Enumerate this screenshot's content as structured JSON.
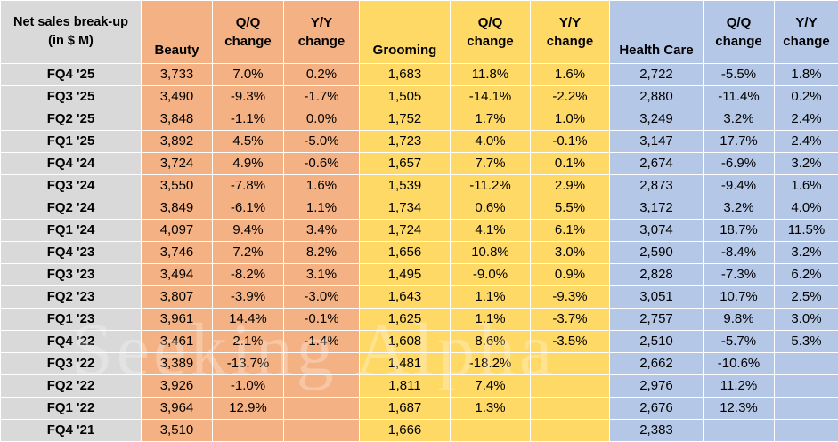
{
  "table": {
    "header": {
      "label": "Net sales break-up\n(in $ M)",
      "beauty": "Beauty",
      "beauty_qq": "Q/Q\nchange",
      "beauty_yy": "Y/Y\nchange",
      "grooming": "Grooming",
      "grooming_qq": "Q/Q\nchange",
      "grooming_yy": "Y/Y\nchange",
      "health": "Health Care",
      "health_qq": "Q/Q\nchange",
      "health_yy": "Y/Y\nchange"
    },
    "rows": [
      [
        "FQ4 '25",
        "3,733",
        "7.0%",
        "0.2%",
        "1,683",
        "11.8%",
        "1.6%",
        "2,722",
        "-5.5%",
        "1.8%"
      ],
      [
        "FQ3 '25",
        "3,490",
        "-9.3%",
        "-1.7%",
        "1,505",
        "-14.1%",
        "-2.2%",
        "2,880",
        "-11.4%",
        "0.2%"
      ],
      [
        "FQ2 '25",
        "3,848",
        "-1.1%",
        "0.0%",
        "1,752",
        "1.7%",
        "1.0%",
        "3,249",
        "3.2%",
        "2.4%"
      ],
      [
        "FQ1 '25",
        "3,892",
        "4.5%",
        "-5.0%",
        "1,723",
        "4.0%",
        "-0.1%",
        "3,147",
        "17.7%",
        "2.4%"
      ],
      [
        "FQ4 '24",
        "3,724",
        "4.9%",
        "-0.6%",
        "1,657",
        "7.7%",
        "0.1%",
        "2,674",
        "-6.9%",
        "3.2%"
      ],
      [
        "FQ3 '24",
        "3,550",
        "-7.8%",
        "1.6%",
        "1,539",
        "-11.2%",
        "2.9%",
        "2,873",
        "-9.4%",
        "1.6%"
      ],
      [
        "FQ2 '24",
        "3,849",
        "-6.1%",
        "1.1%",
        "1,734",
        "0.6%",
        "5.5%",
        "3,172",
        "3.2%",
        "4.0%"
      ],
      [
        "FQ1 '24",
        "4,097",
        "9.4%",
        "3.4%",
        "1,724",
        "4.1%",
        "6.1%",
        "3,074",
        "18.7%",
        "11.5%"
      ],
      [
        "FQ4 '23",
        "3,746",
        "7.2%",
        "8.2%",
        "1,656",
        "10.8%",
        "3.0%",
        "2,590",
        "-8.4%",
        "3.2%"
      ],
      [
        "FQ3 '23",
        "3,494",
        "-8.2%",
        "3.1%",
        "1,495",
        "-9.0%",
        "0.9%",
        "2,828",
        "-7.3%",
        "6.2%"
      ],
      [
        "FQ2 '23",
        "3,807",
        "-3.9%",
        "-3.0%",
        "1,643",
        "1.1%",
        "-9.3%",
        "3,051",
        "10.7%",
        "2.5%"
      ],
      [
        "FQ1 '23",
        "3,961",
        "14.4%",
        "-0.1%",
        "1,625",
        "1.1%",
        "-3.7%",
        "2,757",
        "9.8%",
        "3.0%"
      ],
      [
        "FQ4 '22",
        "3,461",
        "2.1%",
        "-1.4%",
        "1,608",
        "8.6%",
        "-3.5%",
        "2,510",
        "-5.7%",
        "5.3%"
      ],
      [
        "FQ3 '22",
        "3,389",
        "-13.7%",
        "",
        "1,481",
        "-18.2%",
        "",
        "2,662",
        "-10.6%",
        ""
      ],
      [
        "FQ2 '22",
        "3,926",
        "-1.0%",
        "",
        "1,811",
        "7.4%",
        "",
        "2,976",
        "11.2%",
        ""
      ],
      [
        "FQ1 '22",
        "3,964",
        "12.9%",
        "",
        "1,687",
        "1.3%",
        "",
        "2,676",
        "12.3%",
        ""
      ],
      [
        "FQ4 '21",
        "3,510",
        "",
        "",
        "1,666",
        "",
        "",
        "2,383",
        "",
        ""
      ]
    ]
  },
  "watermark": "Seeking Alpha",
  "colors": {
    "label": "#d9d9d9",
    "beauty": "#f4b183",
    "grooming": "#ffd966",
    "health": "#b4c7e7"
  }
}
